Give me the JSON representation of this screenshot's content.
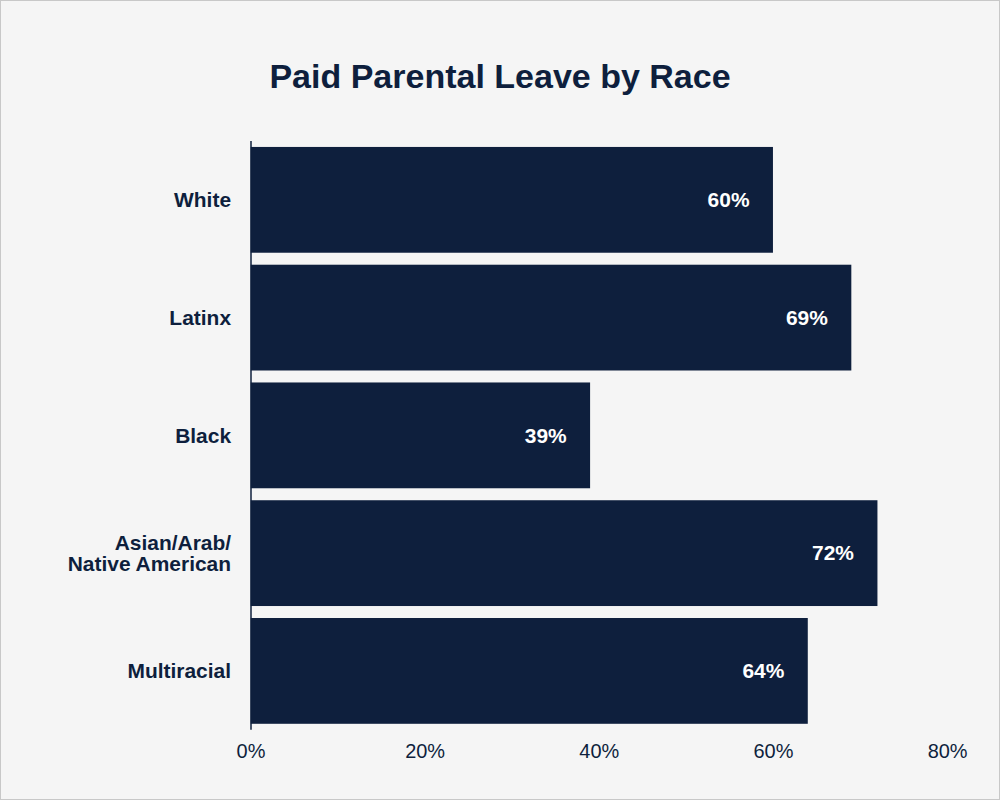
{
  "chart_data": {
    "type": "bar",
    "title": "Paid Parental Leave by Race",
    "orientation": "horizontal",
    "categories": [
      "White",
      "Latinx",
      "Black",
      "Asian/Arab/\nNative American",
      "Multiracial"
    ],
    "values": [
      60,
      69,
      39,
      72,
      64
    ],
    "value_labels": [
      "60%",
      "69%",
      "39%",
      "72%",
      "64%"
    ],
    "data_labels": true,
    "color": "#0e1f3d",
    "xlim": [
      0,
      80
    ],
    "xticks": [
      {
        "value": 0,
        "label": "0%"
      },
      {
        "value": 20,
        "label": "20%"
      },
      {
        "value": 40,
        "label": "40%"
      },
      {
        "value": 60,
        "label": "60%"
      },
      {
        "value": 80,
        "label": "80%"
      }
    ],
    "grid": false
  }
}
